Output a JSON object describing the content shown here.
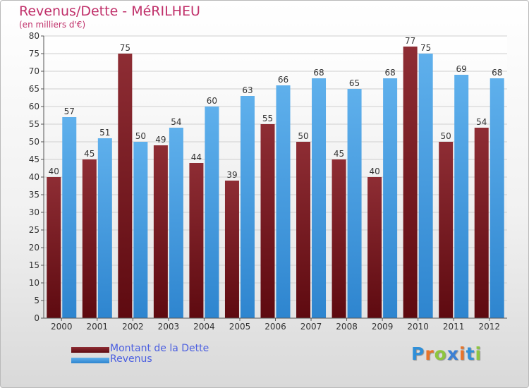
{
  "title": "Revenus/Dette - MéRILHEU",
  "subtitle": "(en milliers d'€)",
  "brand": {
    "letters": [
      "P",
      "r",
      "o",
      "x",
      "i",
      "t",
      "i"
    ],
    "colors": [
      "#2f8fd8",
      "#e8742a",
      "#8dc63f",
      "#3a7fd5",
      "#e8742a",
      "#2f8fd8",
      "#8dc63f"
    ]
  },
  "legend": {
    "placement": "bottom-left",
    "items": [
      {
        "label": "Montant de la Dette",
        "color": "#6b0f14"
      },
      {
        "label": "Revenus",
        "color": "#3d99e0"
      }
    ]
  },
  "chart_data": {
    "type": "bar",
    "title": "Revenus/Dette - MéRILHEU",
    "subtitle": "(en milliers d'€)",
    "categories": [
      "2000",
      "2001",
      "2002",
      "2003",
      "2004",
      "2005",
      "2006",
      "2007",
      "2008",
      "2009",
      "2010",
      "2011",
      "2012"
    ],
    "series": [
      {
        "name": "Montant de la Dette",
        "color": "#7a1c22",
        "values": [
          40,
          45,
          75,
          49,
          44,
          39,
          55,
          50,
          45,
          40,
          77,
          50,
          54
        ]
      },
      {
        "name": "Revenus",
        "color": "#45a1e6",
        "values": [
          57,
          51,
          50,
          54,
          60,
          63,
          66,
          68,
          65,
          68,
          75,
          69,
          68
        ]
      }
    ],
    "ylim": [
      0,
      80
    ],
    "yticks": [
      0,
      5,
      10,
      15,
      20,
      25,
      30,
      35,
      40,
      45,
      50,
      55,
      60,
      65,
      70,
      75,
      80
    ],
    "grid": true,
    "xlabel": "",
    "ylabel": ""
  }
}
